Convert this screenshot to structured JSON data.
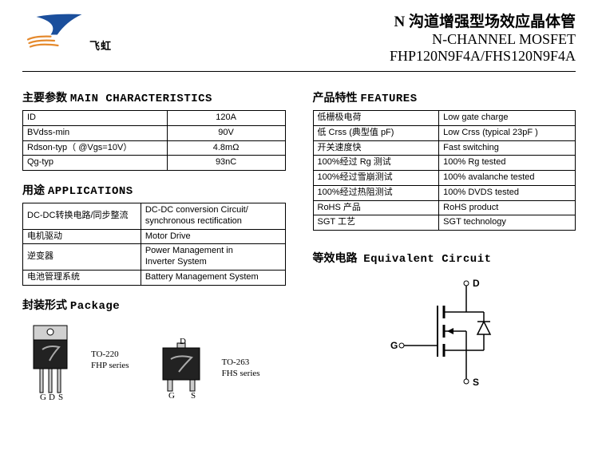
{
  "header": {
    "brand": "飞虹",
    "title_cn": "N 沟道增强型场效应晶体管",
    "title_en": "N-CHANNEL MOSFET",
    "part_numbers": "FHP120N9F4A/FHS120N9F4A",
    "logo_colors": {
      "blue": "#1b4f9c",
      "orange": "#e58a2e"
    }
  },
  "sections": {
    "characteristics": {
      "cn": "主要参数",
      "en": "MAIN CHARACTERISTICS"
    },
    "applications": {
      "cn": "用途",
      "en": "APPLICATIONS"
    },
    "features": {
      "cn": "产品特性",
      "en": "FEATURES"
    },
    "package": {
      "cn": "封装形式",
      "en": "Package"
    },
    "circuit": {
      "cn": "等效电路",
      "en": "Equivalent Circuit"
    }
  },
  "characteristics": {
    "rows": [
      {
        "param": "ID",
        "value": "120A"
      },
      {
        "param": "BVdss-min",
        "value": "90V"
      },
      {
        "param": "Rdson-typ（ @Vgs=10V）",
        "value": "4.8mΩ"
      },
      {
        "param": "Qg-typ",
        "value": "93nC"
      }
    ]
  },
  "applications": {
    "rows": [
      {
        "cn": "DC-DC转换电路/同步整流",
        "en": "DC-DC conversion Circuit/\nsynchronous rectification"
      },
      {
        "cn": "电机驱动",
        "en": "Motor Drive"
      },
      {
        "cn": "逆变器",
        "en": "Power Management in\nInverter System"
      },
      {
        "cn": "电池管理系统",
        "en": "Battery Management System"
      }
    ]
  },
  "features": {
    "rows": [
      {
        "cn": "低栅极电荷",
        "en": "Low gate charge"
      },
      {
        "cn": "低 Crss (典型值 pF)",
        "en": "Low Crss (typical 23pF )"
      },
      {
        "cn": "开关速度快",
        "en": "Fast switching"
      },
      {
        "cn": "100%经过 Rg 测试",
        "en": "100% Rg tested"
      },
      {
        "cn": "100%经过雪崩测试",
        "en": "100% avalanche tested"
      },
      {
        "cn": "100%经过热阻测试",
        "en": "100% DVDS tested"
      },
      {
        "cn": "RoHS 产品",
        "en": "RoHS product"
      },
      {
        "cn": "SGT 工艺",
        "en": "SGT technology"
      }
    ]
  },
  "packages": {
    "to220": {
      "code": "TO-220",
      "series": "FHP series"
    },
    "to263": {
      "code": "TO-263",
      "series": "FHS series"
    }
  },
  "pins": {
    "g": "G",
    "d": "D",
    "s": "S"
  },
  "colors": {
    "border": "#000000",
    "background": "#ffffff",
    "text": "#000000",
    "pkg_body": "#222222"
  }
}
